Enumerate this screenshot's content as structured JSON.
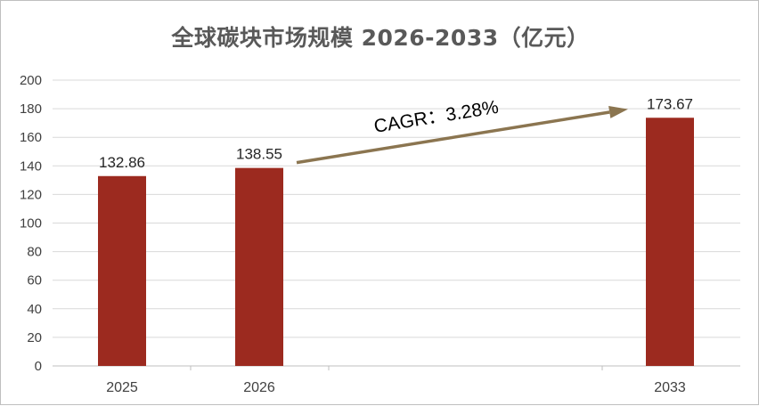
{
  "chart_data": {
    "type": "bar",
    "title": "全球碳块市场规模 2026-2033（亿元）",
    "categories": [
      "2025",
      "2026",
      "2033"
    ],
    "values": [
      132.86,
      138.55,
      173.67
    ],
    "data_labels": [
      "132.86",
      "138.55",
      "173.67"
    ],
    "ylim": [
      0,
      200
    ],
    "yticks": [
      "0",
      "20",
      "40",
      "60",
      "80",
      "100",
      "120",
      "140",
      "160",
      "180",
      "200"
    ],
    "grid": true,
    "legend": "none",
    "bar_color": "#9C2A1F",
    "annotation": {
      "text": "CAGR：3.28%",
      "arrow_color": "#8B7550",
      "from_category": "2026",
      "to_category": "2033"
    }
  }
}
